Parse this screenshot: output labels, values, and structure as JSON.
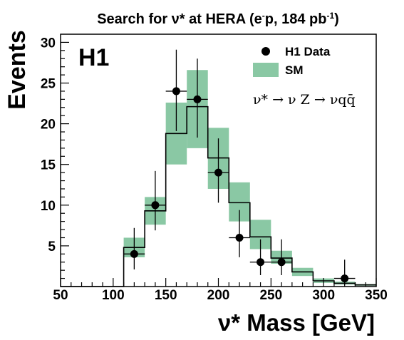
{
  "chart_data": {
    "type": "bar",
    "title_parts": [
      "Search for ",
      "ν*",
      " at HERA (e",
      "-",
      "p, 184 pb",
      "-1",
      ")"
    ],
    "experiment_label": "H1",
    "xlabel": "ν* Mass [GeV]",
    "ylabel": "Events",
    "xlim": [
      50,
      350
    ],
    "ylim": [
      0,
      31
    ],
    "x_ticks": [
      50,
      100,
      150,
      200,
      250,
      300,
      350
    ],
    "y_ticks": [
      5,
      10,
      15,
      20,
      25,
      30
    ],
    "legend_position": "top-right",
    "legend": [
      {
        "label": "H1 Data",
        "marker": "filled-circle"
      },
      {
        "label": "SM",
        "marker": "band"
      }
    ],
    "annotation": "ν* → ν Z → νqq̄",
    "colors": {
      "band": "#8ac8a4",
      "data": "#000000",
      "histogram": "#000000"
    },
    "bins": [
      50,
      70,
      90,
      110,
      130,
      150,
      170,
      190,
      210,
      230,
      250,
      270,
      290,
      310,
      330,
      350
    ],
    "series": [
      {
        "name": "SM",
        "kind": "histogram",
        "values": [
          0,
          0,
          0,
          4.8,
          9.3,
          18.8,
          22.1,
          15.8,
          10.3,
          6.1,
          3.5,
          1.8,
          0.7,
          0.4,
          0.2
        ],
        "band_low": [
          0,
          0,
          0,
          3.6,
          7.6,
          15.0,
          17.0,
          12.0,
          8.0,
          4.6,
          2.8,
          1.3,
          0.45,
          0.25,
          0.1
        ],
        "band_high": [
          0,
          0,
          0,
          6.0,
          11.0,
          22.6,
          26.6,
          19.5,
          12.8,
          8.2,
          4.4,
          2.3,
          1.0,
          0.6,
          0.3
        ]
      },
      {
        "name": "H1 Data",
        "kind": "points",
        "x": [
          120,
          140,
          160,
          180,
          200,
          220,
          240,
          260,
          320
        ],
        "y": [
          4,
          10,
          24,
          23,
          14,
          6,
          3,
          3,
          1
        ],
        "yerr_low": [
          1.9,
          3.1,
          4.9,
          4.7,
          3.7,
          2.4,
          1.6,
          1.6,
          0.8
        ],
        "yerr_high": [
          3.2,
          4.2,
          5.1,
          5.0,
          4.2,
          3.4,
          2.8,
          2.8,
          2.3
        ]
      }
    ]
  }
}
